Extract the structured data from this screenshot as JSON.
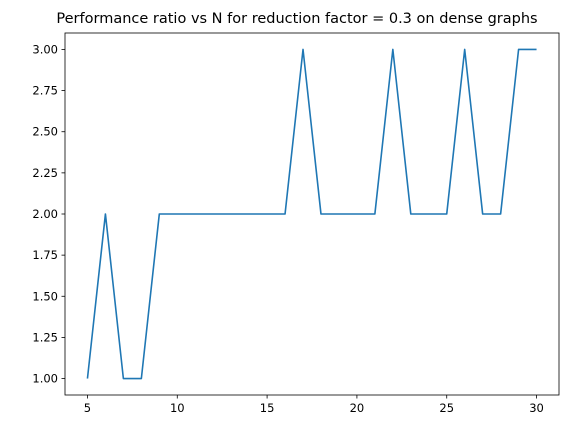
{
  "chart_data": {
    "type": "line",
    "title": "Performance ratio vs N for reduction factor = 0.3 on dense graphs",
    "xlabel": "",
    "ylabel": "",
    "xlim": [
      3.75,
      31.25
    ],
    "ylim": [
      0.9,
      3.1
    ],
    "xticks": [
      5,
      10,
      15,
      20,
      25,
      30
    ],
    "xtick_labels": [
      "5",
      "10",
      "15",
      "20",
      "25",
      "30"
    ],
    "yticks": [
      1.0,
      1.25,
      1.5,
      1.75,
      2.0,
      2.25,
      2.5,
      2.75,
      3.0
    ],
    "ytick_labels": [
      "1.00",
      "1.25",
      "1.50",
      "1.75",
      "2.00",
      "2.25",
      "2.50",
      "2.75",
      "3.00"
    ],
    "grid": false,
    "line_color": "#1f77b4",
    "x": [
      5,
      6,
      7,
      8,
      9,
      10,
      11,
      12,
      13,
      14,
      15,
      16,
      17,
      18,
      19,
      20,
      21,
      22,
      23,
      24,
      25,
      26,
      27,
      28,
      29,
      30
    ],
    "series": [
      {
        "values": [
          1.0,
          2.0,
          1.0,
          1.0,
          2.0,
          2.0,
          2.0,
          2.0,
          2.0,
          2.0,
          2.0,
          2.0,
          3.0,
          2.0,
          2.0,
          2.0,
          2.0,
          3.0,
          2.0,
          2.0,
          2.0,
          3.0,
          2.0,
          2.0,
          3.0,
          3.0
        ]
      }
    ]
  }
}
